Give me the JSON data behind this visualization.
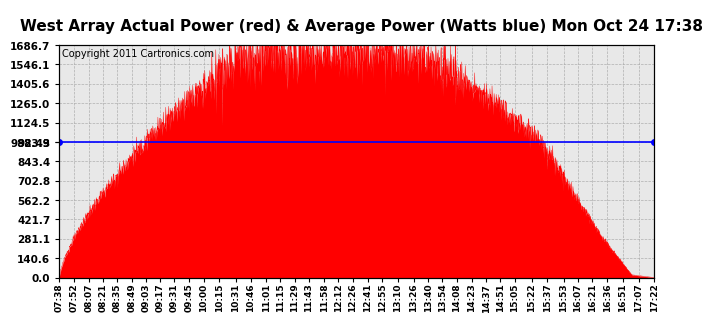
{
  "title": "West Array Actual Power (red) & Average Power (Watts blue) Mon Oct 24 17:38",
  "copyright": "Copyright 2011 Cartronics.com",
  "avg_power": 982.43,
  "y_max": 1686.7,
  "y_ticks": [
    0.0,
    140.6,
    281.1,
    421.7,
    562.2,
    702.8,
    843.4,
    983.9,
    1124.5,
    1265.0,
    1405.6,
    1546.1,
    1686.7
  ],
  "x_ticks": [
    "07:38",
    "07:52",
    "08:07",
    "08:21",
    "08:35",
    "08:49",
    "09:03",
    "09:17",
    "09:31",
    "09:45",
    "10:00",
    "10:15",
    "10:31",
    "10:46",
    "11:01",
    "11:15",
    "11:29",
    "11:43",
    "11:58",
    "12:12",
    "12:26",
    "12:41",
    "12:55",
    "13:10",
    "13:26",
    "13:40",
    "13:54",
    "14:08",
    "14:23",
    "14:37",
    "14:51",
    "15:05",
    "15:22",
    "15:37",
    "15:53",
    "16:07",
    "16:21",
    "16:36",
    "16:51",
    "17:07",
    "17:22"
  ],
  "bg_color": "#ffffff",
  "plot_bg": "#e8e8e8",
  "red_color": "#ff0000",
  "blue_color": "#0000ff",
  "grid_color": "#aaaaaa",
  "peak_power": 1686.7,
  "title_fontsize": 11,
  "copyright_fontsize": 7,
  "tick_fontsize": 7.5,
  "xtick_fontsize": 6.5
}
